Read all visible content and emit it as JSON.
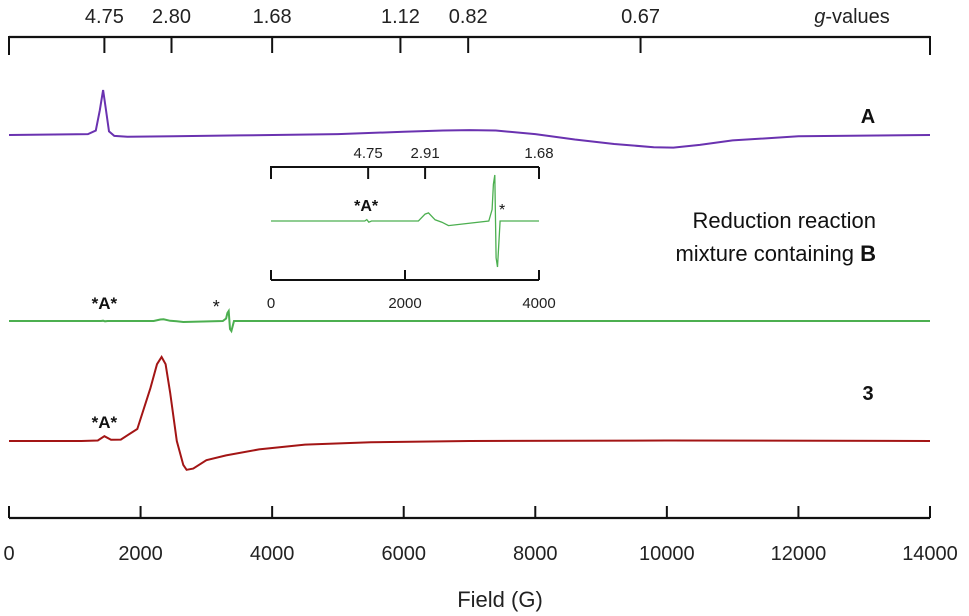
{
  "chart_data": {
    "type": "line",
    "title": "",
    "xlabel": "Field (G)",
    "xlim": [
      0,
      14000
    ],
    "x_ticks": [
      0,
      2000,
      4000,
      6000,
      8000,
      10000,
      12000,
      14000
    ],
    "x_tick_labels": [
      "0",
      "2000",
      "4000",
      "6000",
      "8000",
      "10000",
      "12000",
      "14000"
    ],
    "grid": false,
    "g_axis": {
      "label": "g-values",
      "ticks": [
        {
          "field": 1450,
          "label": "4.75"
        },
        {
          "field": 2470,
          "label": "2.80"
        },
        {
          "field": 4000,
          "label": "1.68"
        },
        {
          "field": 5950,
          "label": "1.12"
        },
        {
          "field": 6980,
          "label": "0.82"
        },
        {
          "field": 9600,
          "label": "0.67"
        }
      ]
    },
    "series": [
      {
        "name": "A",
        "label_text": "A",
        "color": "#6a32b0",
        "x": [
          0,
          1200,
          1320,
          1380,
          1430,
          1470,
          1520,
          1600,
          1800,
          2500,
          3500,
          5000,
          6000,
          6600,
          7000,
          7400,
          8000,
          8600,
          9200,
          9800,
          10100,
          10500,
          11000,
          12000,
          14000
        ],
        "y": [
          0,
          0.02,
          0.1,
          0.55,
          1.0,
          0.6,
          0.08,
          -0.02,
          -0.04,
          -0.03,
          -0.01,
          0.02,
          0.07,
          0.1,
          0.11,
          0.1,
          0.02,
          -0.1,
          -0.2,
          -0.27,
          -0.28,
          -0.22,
          -0.12,
          -0.03,
          0
        ]
      },
      {
        "name": "Reduction reaction mixture containing B",
        "label_text": [
          "Reduction reaction",
          "mixture containing ",
          "B"
        ],
        "color": "#4caf50",
        "x": [
          0,
          1400,
          1430,
          1460,
          1500,
          2200,
          2300,
          2350,
          2450,
          2550,
          2650,
          3250,
          3300,
          3320,
          3340,
          3360,
          3380,
          3420,
          3600,
          14000
        ],
        "y": [
          0,
          0.0,
          0.06,
          -0.05,
          0.0,
          0.0,
          0.3,
          0.35,
          0.05,
          -0.05,
          -0.2,
          0.0,
          0.5,
          1.6,
          2.0,
          -1.6,
          -2.0,
          0.0,
          0.0,
          0.0
        ]
      },
      {
        "name": "3",
        "label_text": "3",
        "color": "#a31515",
        "x": [
          0,
          1100,
          1350,
          1450,
          1550,
          1700,
          1950,
          2150,
          2250,
          2320,
          2380,
          2450,
          2550,
          2650,
          2700,
          2800,
          3000,
          3300,
          3800,
          4500,
          5500,
          7000,
          10000,
          14000
        ],
        "y": [
          0,
          0.0,
          0.02,
          0.2,
          0.05,
          0.06,
          0.5,
          2.2,
          3.2,
          3.5,
          3.2,
          2.0,
          0.0,
          -1.0,
          -1.2,
          -1.15,
          -0.8,
          -0.6,
          -0.35,
          -0.15,
          -0.05,
          0.0,
          0.02,
          0.0
        ]
      }
    ],
    "annotations": [
      {
        "text": "*A*",
        "series": "Reduction reaction mixture containing B",
        "field": 1450
      },
      {
        "text": "*",
        "series": "Reduction reaction mixture containing B",
        "field": 3150
      },
      {
        "text": "*A*",
        "series": "3",
        "field": 1450
      }
    ],
    "inset": {
      "series": "Reduction reaction mixture containing B",
      "xlim": [
        0,
        4000
      ],
      "x_ticks": [
        0,
        2000,
        4000
      ],
      "x_tick_labels": [
        "0",
        "2000",
        "4000"
      ],
      "g_ticks": [
        {
          "field": 1450,
          "label": "4.75"
        },
        {
          "field": 2300,
          "label": "2.91"
        },
        {
          "field": 4000,
          "label": "1.68"
        }
      ],
      "annotations": [
        {
          "text": "*A*",
          "field": 1450
        },
        {
          "text": "*",
          "field": 3450
        }
      ]
    }
  }
}
